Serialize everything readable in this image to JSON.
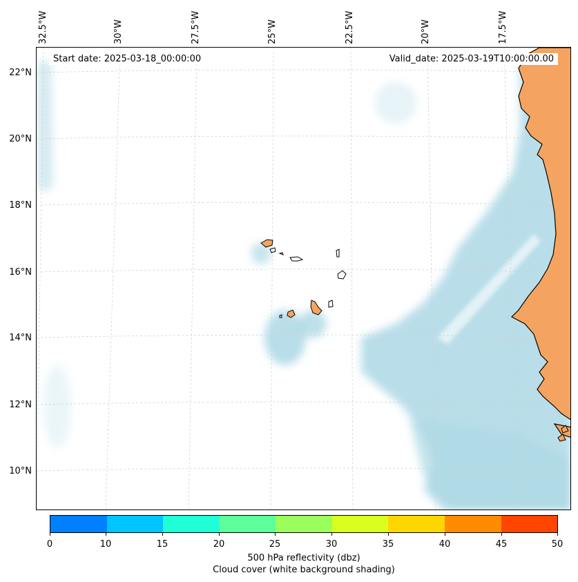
{
  "map": {
    "longitude_labels": [
      "32.5°W",
      "30°W",
      "27.5°W",
      "25°W",
      "22.5°W",
      "20°W",
      "17.5°W"
    ],
    "latitude_labels": [
      "22°N",
      "20°N",
      "18°N",
      "16°N",
      "14°N",
      "12°N",
      "10°N"
    ],
    "start_date": "Start date: 2025-03-18_00:00:00",
    "valid_date": "Valid_date: 2025-03-19T10:00:00.00",
    "colors": {
      "land": "#f4a460",
      "cloud": "#add8e6",
      "coastline": "#000000",
      "gridline": "#cccccc"
    }
  },
  "colorbar": {
    "ticks": [
      "0",
      "10",
      "15",
      "20",
      "25",
      "30",
      "35",
      "40",
      "45",
      "50"
    ],
    "colors": [
      "#007fff",
      "#00c5ff",
      "#1effd8",
      "#5dff9a",
      "#9aff5d",
      "#d8ff1e",
      "#ffd700",
      "#ff8c00",
      "#ff4500"
    ],
    "label": "500 hPa reflectivity (dbz)",
    "sublabel": "Cloud cover (white background shading)"
  }
}
